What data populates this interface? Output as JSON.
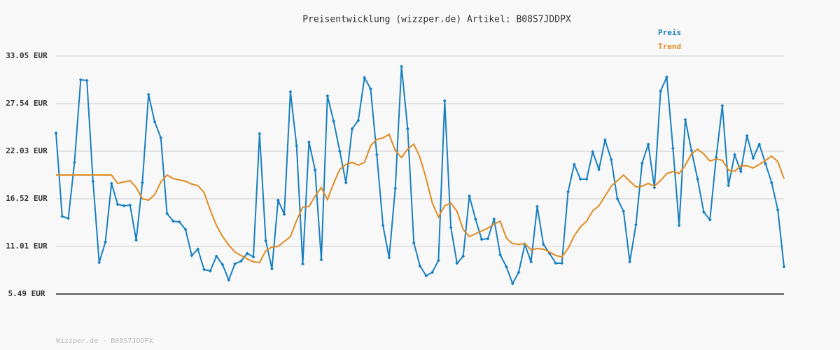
{
  "chart_data": {
    "type": "line",
    "title": "Preisentwicklung (wizzper.de) Artikel: B08S7JDDPX",
    "footer": "Wizzper.de - B08S7JDDPX",
    "ylim": [
      5.49,
      33.05
    ],
    "yticks": [
      {
        "value": 5.49,
        "label": "5.49 EUR"
      },
      {
        "value": 11.01,
        "label": "11.01 EUR"
      },
      {
        "value": 16.52,
        "label": "16.52 EUR"
      },
      {
        "value": 22.03,
        "label": "22.03 EUR"
      },
      {
        "value": 27.54,
        "label": "27.54 EUR"
      },
      {
        "value": 33.05,
        "label": "33.05 EUR"
      }
    ],
    "grid": true,
    "legend": "top-right",
    "series": [
      {
        "name": "Preis",
        "color": "#1a80c0",
        "markers": true,
        "values": [
          24.13,
          14.49,
          14.24,
          20.73,
          30.29,
          30.21,
          18.54,
          9.14,
          11.49,
          18.3,
          15.87,
          15.7,
          15.78,
          11.73,
          18.38,
          28.59,
          25.43,
          23.57,
          14.81,
          13.92,
          13.84,
          12.95,
          9.95,
          10.68,
          8.33,
          8.16,
          9.87,
          8.89,
          7.11,
          8.98,
          9.3,
          10.19,
          9.79,
          24.05,
          11.65,
          8.41,
          16.35,
          14.73,
          28.92,
          22.67,
          8.98,
          23.08,
          19.84,
          9.46,
          28.43,
          25.51,
          22.03,
          18.38,
          24.62,
          25.59,
          30.54,
          29.24,
          21.62,
          13.43,
          9.7,
          17.73,
          31.83,
          24.62,
          11.41,
          8.73,
          7.6,
          8.0,
          9.38,
          27.86,
          13.19,
          9.06,
          9.87,
          16.84,
          14.16,
          11.81,
          11.89,
          14.16,
          10.03,
          8.65,
          6.7,
          8.0,
          11.24,
          9.22,
          15.62,
          11.24,
          10.19,
          9.06,
          9.06,
          17.32,
          20.49,
          18.79,
          18.79,
          21.94,
          19.92,
          23.32,
          21.05,
          16.51,
          15.06,
          9.22,
          13.51,
          20.65,
          22.84,
          17.81,
          29.0,
          30.62,
          22.35,
          13.43,
          25.67,
          22.11,
          18.79,
          14.97,
          14.08,
          21.3,
          27.29,
          18.05,
          21.62,
          19.68,
          23.81,
          21.22,
          22.84,
          20.57,
          18.38,
          15.22,
          8.65
        ]
      },
      {
        "name": "Trend",
        "color": "#e08a20",
        "markers": false,
        "values": [
          19.27,
          19.27,
          19.27,
          19.27,
          19.27,
          19.27,
          19.27,
          19.27,
          19.27,
          19.27,
          18.3,
          18.46,
          18.62,
          17.81,
          16.51,
          16.35,
          17.0,
          18.46,
          19.27,
          18.86,
          18.7,
          18.54,
          18.22,
          18.05,
          17.24,
          15.22,
          13.43,
          12.14,
          11.16,
          10.35,
          9.95,
          9.54,
          9.22,
          9.14,
          10.51,
          10.92,
          11.0,
          11.57,
          12.14,
          14.0,
          15.54,
          15.62,
          16.84,
          17.81,
          16.43,
          18.3,
          19.92,
          20.49,
          20.73,
          20.41,
          20.73,
          22.67,
          23.4,
          23.57,
          23.97,
          22.11,
          21.3,
          22.27,
          22.84,
          21.3,
          18.86,
          16.03,
          14.41,
          15.7,
          16.03,
          15.06,
          12.95,
          12.14,
          12.46,
          12.79,
          13.11,
          13.59,
          13.92,
          11.97,
          11.32,
          11.24,
          11.32,
          10.6,
          10.76,
          10.68,
          10.35,
          9.95,
          9.79,
          10.76,
          12.22,
          13.27,
          13.92,
          15.14,
          15.7,
          16.84,
          17.97,
          18.62,
          19.27,
          18.54,
          17.89,
          17.97,
          18.3,
          17.97,
          18.62,
          19.43,
          19.68,
          19.43,
          20.41,
          21.7,
          22.27,
          21.7,
          20.89,
          21.13,
          20.97,
          19.84,
          19.68,
          20.33,
          20.33,
          20.08,
          20.49,
          20.97,
          21.46,
          20.81,
          18.86
        ]
      }
    ]
  }
}
